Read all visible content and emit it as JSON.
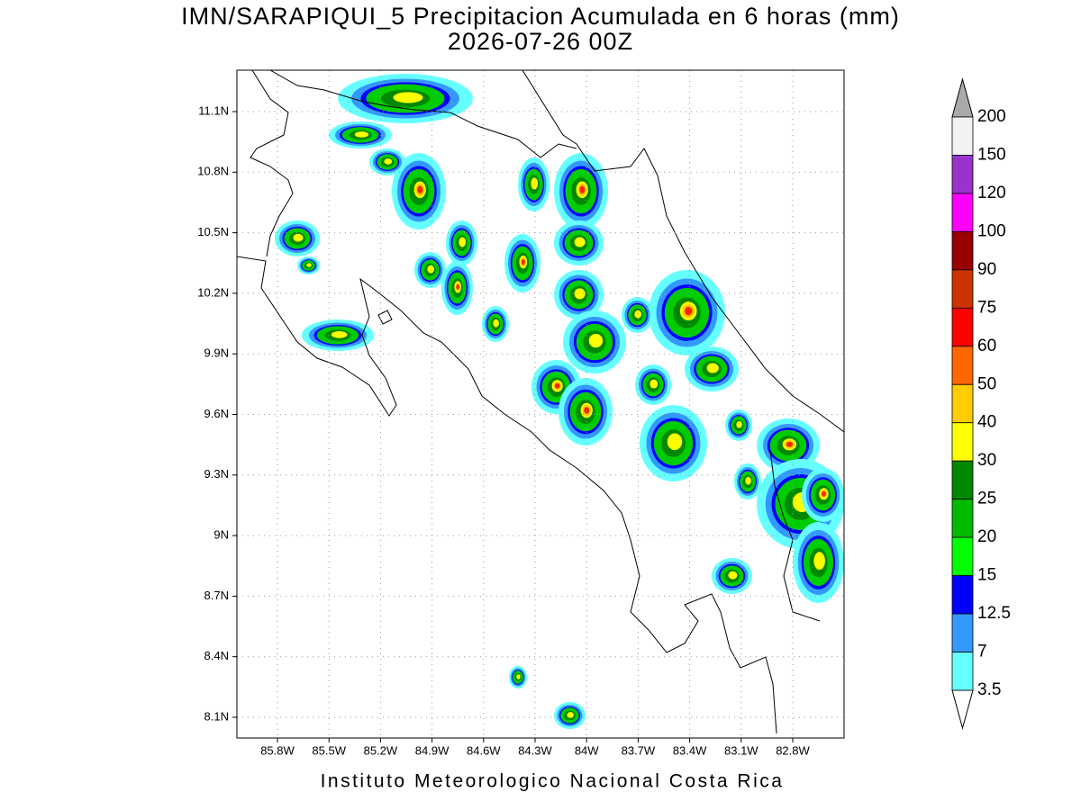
{
  "title": "IMN/SARAPIQUI_5 Precipitacion Acumulada en 6 horas (mm)",
  "subtitle": "2026-07-26 00Z",
  "footer": "Instituto Meteorologico Nacional Costa Rica",
  "lat_labels": [
    "11.1N",
    "10.8N",
    "10.5N",
    "10.2N",
    "9.9N",
    "9.6N",
    "9.3N",
    "9N",
    "8.7N",
    "8.4N",
    "8.1N"
  ],
  "lon_labels": [
    "85.8W",
    "85.5W",
    "85.2W",
    "84.9W",
    "84.6W",
    "84.3W",
    "84W",
    "83.7W",
    "83.4W",
    "83.1W",
    "82.8W"
  ],
  "colorbar": {
    "labels": [
      "200",
      "150",
      "120",
      "100",
      "90",
      "75",
      "60",
      "50",
      "40",
      "30",
      "25",
      "20",
      "15",
      "12.5",
      "7",
      "3.5"
    ],
    "colors": [
      "#f2f2f2",
      "#9933cc",
      "#ff00ff",
      "#990000",
      "#cc3300",
      "#ff0000",
      "#ff6600",
      "#ffcc00",
      "#ffff00",
      "#008800",
      "#00bb00",
      "#00ff00",
      "#0000ff",
      "#3399ff",
      "#66ffff"
    ],
    "over_color": "#aaaaaa",
    "under_color": "#ffffff"
  }
}
